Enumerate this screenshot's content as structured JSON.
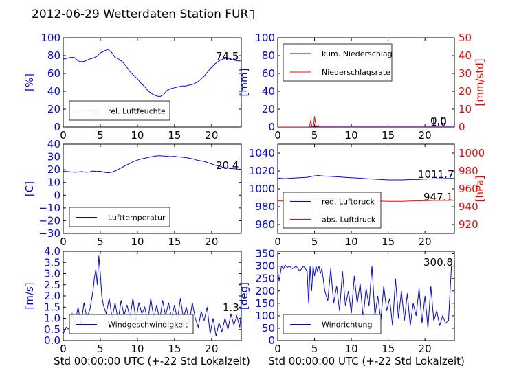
{
  "figure_title": "2012-06-29 Wetterdaten Station FUR▯",
  "xlabel": "Std 00:00:00 UTC (+-22 Std Lokalzeit)",
  "chart_data": [
    {
      "id": "humidity",
      "type": "line",
      "xlim": [
        0,
        24
      ],
      "ylim": [
        0,
        100
      ],
      "xticks": [
        "0",
        "5",
        "10",
        "15",
        "20"
      ],
      "yticks": [
        "0",
        "20",
        "40",
        "60",
        "80",
        "100"
      ],
      "ylabel": "[%]",
      "value_label": "74.5",
      "legend": [
        {
          "name": "rel. Luftfeuchte",
          "color": "#0000ff"
        }
      ],
      "series": [
        {
          "name": "rel. Luftfeuchte",
          "color": "#0000ff",
          "x": [
            0,
            0.5,
            1,
            1.5,
            2,
            2.5,
            3,
            3.5,
            4,
            4.5,
            5,
            5.5,
            6,
            6.5,
            7,
            7.5,
            8,
            8.5,
            9,
            9.5,
            10,
            10.5,
            11,
            11.5,
            12,
            12.5,
            13,
            13.5,
            14,
            14.5,
            15,
            15.5,
            16,
            16.5,
            17,
            17.5,
            18,
            18.5,
            19,
            19.5,
            20,
            20.5,
            21,
            21.5,
            22,
            22.5,
            23,
            23.5,
            24
          ],
          "y": [
            76,
            77,
            78,
            78,
            74,
            73,
            74,
            76,
            77,
            79,
            83,
            85,
            87,
            84,
            78,
            76,
            73,
            68,
            62,
            58,
            54,
            49,
            45,
            40,
            37,
            35,
            34,
            36,
            41,
            43,
            44,
            45,
            46,
            46,
            47,
            48,
            50,
            53,
            57,
            62,
            67,
            71,
            74,
            76,
            77,
            76,
            75,
            74,
            74
          ]
        }
      ]
    },
    {
      "id": "rain",
      "type": "line",
      "xlim": [
        0,
        24
      ],
      "ylim": [
        0,
        100
      ],
      "ylim_right": [
        0,
        50
      ],
      "xticks": [
        "0",
        "5",
        "10",
        "15",
        "20"
      ],
      "yticks": [
        "0",
        "20",
        "40",
        "60",
        "80",
        "100"
      ],
      "yticks_right": [
        "0",
        "10",
        "20",
        "30",
        "40",
        "50"
      ],
      "ylabel": "[mm]",
      "ylabel_right": "[mm/std]",
      "value_label": "1.0",
      "value_label_2": "0.0",
      "legend": [
        {
          "name": "kum. Niederschlag",
          "color": "#0000ff"
        },
        {
          "name": "Niederschlagsrate",
          "color": "#ff0000"
        }
      ],
      "series": [
        {
          "name": "kum. Niederschlag",
          "color": "#0000ff",
          "axis": "left",
          "x": [
            0,
            4.4,
            4.6,
            5,
            5.2,
            5.5,
            6,
            24
          ],
          "y": [
            0,
            0,
            0.3,
            0.5,
            0.8,
            1.0,
            1.0,
            1.0
          ]
        },
        {
          "name": "Niederschlagsrate",
          "color": "#ff0000",
          "axis": "right",
          "x": [
            0,
            4.3,
            4.4,
            4.5,
            4.6,
            4.7,
            4.8,
            4.9,
            5.0,
            5.1,
            5.2,
            5.3,
            5.4,
            5.5,
            5.6,
            5.8,
            24
          ],
          "y": [
            0,
            0,
            2,
            4,
            1,
            0,
            0,
            2,
            6,
            3,
            1,
            0.5,
            0,
            1,
            0,
            0,
            0
          ]
        }
      ]
    },
    {
      "id": "temperature",
      "type": "line",
      "xlim": [
        0,
        24
      ],
      "ylim": [
        -30,
        40
      ],
      "xticks": [
        "0",
        "5",
        "10",
        "15",
        "20"
      ],
      "yticks": [
        "−30",
        "−20",
        "−10",
        "0",
        "10",
        "20",
        "30",
        "40"
      ],
      "ylabel": "[C]",
      "value_label": "20.4",
      "legend": [
        {
          "name": "Lufttemperatur",
          "color": "#0000ff"
        }
      ],
      "series": [
        {
          "name": "Lufttemperatur",
          "color": "#0000ff",
          "x": [
            0,
            0.5,
            1,
            1.5,
            2,
            2.5,
            3,
            3.5,
            4,
            4.5,
            5,
            5.5,
            6,
            6.5,
            7,
            7.5,
            8,
            8.5,
            9,
            9.5,
            10,
            10.5,
            11,
            11.5,
            12,
            12.5,
            13,
            13.5,
            14,
            14.5,
            15,
            15.5,
            16,
            16.5,
            17,
            17.5,
            18,
            18.5,
            19,
            19.5,
            20,
            20.5,
            21,
            21.5,
            22,
            22.5,
            23,
            23.5,
            24
          ],
          "y": [
            19,
            18.5,
            18.3,
            18,
            18.2,
            18.5,
            18,
            18.2,
            19,
            18.6,
            18.8,
            18,
            17.6,
            18,
            19,
            20.5,
            22,
            23.5,
            25,
            26.5,
            27.5,
            28.5,
            29,
            29.7,
            30.3,
            30.8,
            31,
            30.8,
            30.5,
            30.3,
            30.5,
            30.1,
            29.8,
            29.5,
            29,
            28.5,
            27.5,
            27,
            26.5,
            25.5,
            24.5,
            23.5,
            23,
            22,
            21.5,
            21,
            20.8,
            20.5,
            20.4
          ]
        }
      ]
    },
    {
      "id": "pressure",
      "type": "line",
      "xlim": [
        0,
        24
      ],
      "ylim": [
        950,
        1050
      ],
      "ylim_right": [
        910,
        1010
      ],
      "xticks": [
        "0",
        "5",
        "10",
        "15",
        "20"
      ],
      "yticks": [
        "960",
        "980",
        "1000",
        "1020",
        "1040"
      ],
      "yticks_right": [
        "920",
        "940",
        "960",
        "980",
        "1000"
      ],
      "ylabel_right": "[hPa]",
      "value_label": "1011.7",
      "value_label_2": "947.1",
      "legend": [
        {
          "name": "red. Luftdruck",
          "color": "#0000ff"
        },
        {
          "name": "abs. Luftdruck",
          "color": "#ff0000"
        }
      ],
      "series": [
        {
          "name": "red. Luftdruck",
          "color": "#0000ff",
          "axis": "left",
          "x": [
            0,
            1,
            2,
            3,
            4,
            5,
            5.5,
            6,
            7,
            8,
            9,
            10,
            11,
            12,
            13,
            14,
            15,
            16,
            17,
            18,
            19,
            20,
            21,
            22,
            23,
            24
          ],
          "y": [
            1012,
            1011.5,
            1012,
            1012.5,
            1013,
            1014.5,
            1015,
            1014.5,
            1014,
            1013.5,
            1013,
            1012.5,
            1012,
            1011.5,
            1011,
            1010.5,
            1010,
            1010,
            1010,
            1010.5,
            1010.5,
            1011,
            1011.2,
            1011.5,
            1011.6,
            1011.7
          ]
        },
        {
          "name": "abs. Luftdruck",
          "color": "#ff0000",
          "axis": "right",
          "x": [
            0,
            1,
            2,
            3,
            4,
            5,
            5.5,
            6,
            7,
            8,
            9,
            10,
            11,
            12,
            13,
            14,
            15,
            16,
            17,
            18,
            19,
            20,
            21,
            22,
            23,
            24
          ],
          "y": [
            946.5,
            946.4,
            946.8,
            947.2,
            947.8,
            949,
            949.5,
            949.2,
            948.8,
            948.3,
            947.8,
            947.4,
            947,
            946.8,
            946.5,
            946.2,
            946,
            946,
            946,
            946.3,
            946.5,
            946.8,
            946.9,
            947,
            947,
            947.1
          ]
        }
      ]
    },
    {
      "id": "wind_speed",
      "type": "line",
      "xlim": [
        0,
        24
      ],
      "ylim": [
        0,
        4
      ],
      "xticks": [
        "0",
        "5",
        "10",
        "15",
        "20"
      ],
      "yticks": [
        "0.0",
        "0.5",
        "1.0",
        "1.5",
        "2.0",
        "2.5",
        "3.0",
        "3.5",
        "4.0"
      ],
      "ylabel": "[m/s]",
      "value_label": "1.3",
      "legend": [
        {
          "name": "Windgeschwindigkeit",
          "color": "#0000ff"
        }
      ],
      "series": [
        {
          "name": "Windgeschwindigkeit",
          "color": "#0000ff",
          "x": [
            0,
            0.4,
            0.8,
            1.2,
            1.6,
            2.0,
            2.4,
            2.8,
            3.2,
            3.6,
            4.0,
            4.2,
            4.4,
            4.6,
            4.8,
            5.0,
            5.2,
            5.4,
            5.8,
            6.2,
            6.6,
            7.0,
            7.4,
            7.8,
            8.2,
            8.6,
            9.0,
            9.4,
            9.8,
            10.2,
            10.6,
            11.0,
            11.4,
            11.8,
            12.2,
            12.6,
            13.0,
            13.4,
            13.8,
            14.2,
            14.6,
            15.0,
            15.4,
            15.8,
            16.2,
            16.6,
            17.0,
            17.4,
            17.8,
            18.2,
            18.6,
            19.0,
            19.4,
            19.8,
            20.2,
            20.6,
            21.0,
            21.4,
            21.8,
            22.2,
            22.6,
            23.0,
            23.4,
            23.8,
            24
          ],
          "y": [
            0.3,
            0.6,
            0.5,
            1.2,
            0.8,
            1.5,
            0.7,
            1.7,
            1.0,
            1.4,
            2.2,
            2.8,
            3.2,
            2.5,
            3.8,
            3.0,
            2.0,
            1.6,
            1.2,
            1.9,
            1.0,
            1.7,
            0.9,
            1.8,
            1.1,
            1.6,
            1.0,
            1.9,
            0.9,
            1.7,
            1.2,
            1.5,
            0.8,
            1.9,
            1.0,
            1.6,
            0.9,
            1.8,
            1.1,
            1.7,
            1.0,
            1.6,
            0.9,
            1.9,
            1.0,
            1.5,
            0.8,
            1.7,
            1.0,
            0.6,
            1.3,
            0.9,
            1.5,
            0.3,
            1.0,
            0.2,
            0.8,
            0.4,
            1.0,
            0.5,
            1.2,
            0.7,
            1.1,
            0.6,
            1.3
          ]
        }
      ]
    },
    {
      "id": "wind_direction",
      "type": "line",
      "xlim": [
        0,
        24
      ],
      "ylim": [
        0,
        360
      ],
      "xticks": [
        "0",
        "5",
        "10",
        "15",
        "20"
      ],
      "yticks": [
        "0",
        "50",
        "100",
        "150",
        "200",
        "250",
        "300",
        "350"
      ],
      "ylabel": "[deg]",
      "value_label": "300.8",
      "legend": [
        {
          "name": "Windrichtung",
          "color": "#0000ff"
        }
      ],
      "series": [
        {
          "name": "Windrichtung",
          "color": "#0000ff",
          "x": [
            0,
            0.2,
            0.5,
            0.8,
            1.0,
            1.3,
            1.6,
            2.0,
            2.5,
            3.0,
            3.5,
            4.0,
            4.2,
            4.4,
            4.6,
            4.8,
            5.0,
            5.2,
            5.4,
            5.6,
            5.8,
            6.0,
            6.4,
            6.8,
            7.2,
            7.6,
            8.0,
            8.4,
            8.8,
            9.2,
            9.6,
            10.0,
            10.4,
            10.8,
            11.2,
            11.6,
            12.0,
            12.4,
            12.8,
            13.2,
            13.6,
            14.0,
            14.4,
            14.8,
            15.2,
            15.6,
            16.0,
            16.4,
            16.8,
            17.2,
            17.6,
            18.0,
            18.4,
            18.8,
            19.2,
            19.6,
            20.0,
            20.4,
            20.8,
            21.2,
            21.6,
            22.0,
            22.4,
            22.8,
            23.2,
            23.6,
            24
          ],
          "y": [
            280,
            240,
            300,
            290,
            305,
            295,
            300,
            290,
            300,
            280,
            300,
            280,
            150,
            300,
            200,
            300,
            260,
            300,
            280,
            300,
            270,
            290,
            200,
            160,
            290,
            150,
            220,
            120,
            280,
            140,
            200,
            110,
            260,
            150,
            230,
            90,
            210,
            140,
            300,
            100,
            180,
            80,
            220,
            120,
            170,
            60,
            250,
            90,
            200,
            80,
            190,
            60,
            150,
            100,
            210,
            70,
            180,
            50,
            220,
            80,
            120,
            60,
            100,
            70,
            80,
            300,
            301
          ]
        }
      ]
    }
  ]
}
